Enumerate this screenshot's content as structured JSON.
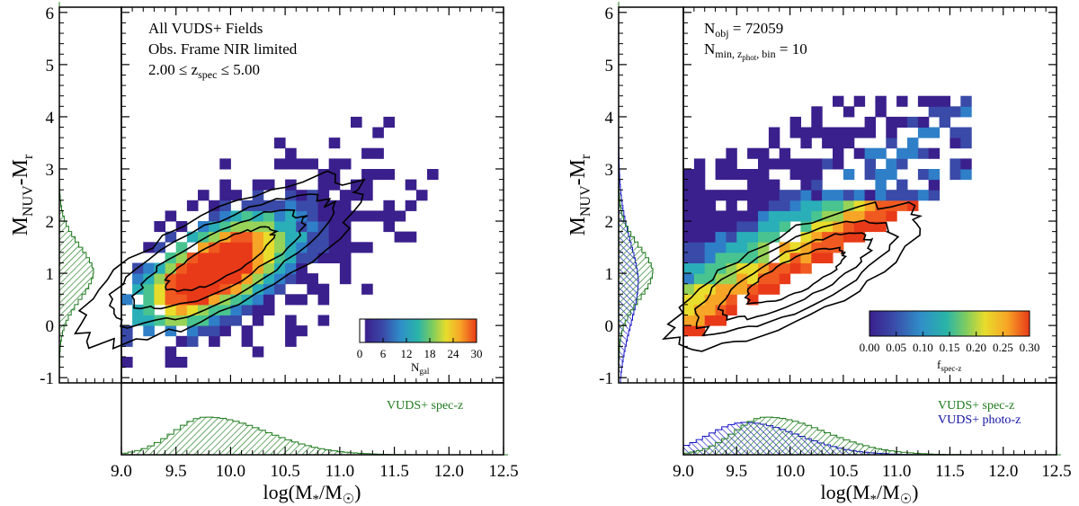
{
  "panels": [
    {
      "id": "left",
      "annotation_lines": [
        "All VUDS+ Fields",
        "Obs. Frame NIR limited",
        "2.00 ≤  z",
        "spec",
        " ≤ 5.00"
      ],
      "ylabel_main": "M",
      "ylabel_sub1": "NUV",
      "ylabel_mid": "-M",
      "ylabel_sub2": "r",
      "xlabel_main": "log(M",
      "xlabel_star": "*",
      "xlabel_mid": "/M",
      "xlabel_sun": "☉",
      "xlabel_end": ")",
      "colorbar": {
        "ticks": [
          "0",
          "6",
          "12",
          "18",
          "24",
          "30"
        ],
        "label_main": "N",
        "label_sub": "gal"
      },
      "hist_legend": [
        {
          "text": "VUDS+ spec-z",
          "color": "#1c7a1c"
        }
      ]
    },
    {
      "id": "right",
      "annotation_lines": [
        "N",
        "obj",
        " = 72059",
        "N",
        "min, z",
        "phot",
        ", bin",
        " = 10"
      ],
      "ylabel_main": "M",
      "ylabel_sub1": "NUV",
      "ylabel_mid": "-M",
      "ylabel_sub2": "r",
      "xlabel_main": "log(M",
      "xlabel_star": "*",
      "xlabel_mid": "/M",
      "xlabel_sun": "☉",
      "xlabel_end": ")",
      "colorbar": {
        "ticks": [
          "0.00",
          "0.05",
          "0.10",
          "0.15",
          "0.20",
          "0.25",
          "0.30"
        ],
        "label_main": "f",
        "label_sub": "spec-z"
      },
      "hist_legend": [
        {
          "text": "VUDS+ spec-z",
          "color": "#1c7a1c"
        },
        {
          "text": "VUDS+ photo-z",
          "color": "#1010a0"
        }
      ]
    }
  ],
  "chart_data": [
    {
      "type": "heatmap",
      "panel": "left",
      "x_range": [
        9.0,
        12.5
      ],
      "y_range": [
        -1.1,
        6.1
      ],
      "x_ticks": [
        9.0,
        9.5,
        10.0,
        10.5,
        11.0,
        11.5,
        12.0,
        12.5
      ],
      "y_ticks": [
        -1,
        0,
        1,
        2,
        3,
        4,
        5,
        6
      ],
      "colorbar_range": [
        0,
        30
      ],
      "density_model": {
        "x_center": 9.75,
        "y_center": 1.05,
        "slope": 0.9,
        "peak": 40
      },
      "contours": "black, 4 levels",
      "marginal_y": {
        "series": "VUDS+ spec-z",
        "peak_y": 1.0
      },
      "marginal_x": {
        "series": "VUDS+ spec-z",
        "peak_x": 9.75
      }
    },
    {
      "type": "heatmap",
      "panel": "right",
      "x_range": [
        9.0,
        12.5
      ],
      "y_range": [
        -1.1,
        6.1
      ],
      "x_ticks": [
        9.0,
        9.5,
        10.0,
        10.5,
        11.0,
        11.5,
        12.0,
        12.5
      ],
      "y_ticks": [
        -1,
        0,
        1,
        2,
        3,
        4,
        5,
        6
      ],
      "colorbar_range": [
        0.0,
        0.3
      ],
      "contours": "black, 4 levels",
      "marginal_y": {
        "series": [
          "VUDS+ spec-z",
          "VUDS+ photo-z"
        ],
        "peak_y": 1.0
      },
      "marginal_x": {
        "series": [
          "VUDS+ spec-z",
          "VUDS+ photo-z"
        ],
        "peak_x_spec": 9.75,
        "peak_x_photo": 9.55
      }
    }
  ],
  "colors": {
    "spec_hist": "#1c7a1c",
    "photo_hist": "#1414c8",
    "colormap": [
      "#3a208c",
      "#3a4aa8",
      "#2f7fc8",
      "#2aaeb8",
      "#49c490",
      "#97d358",
      "#e8dc2c",
      "#f7a526",
      "#f05a20",
      "#e83a18"
    ]
  }
}
